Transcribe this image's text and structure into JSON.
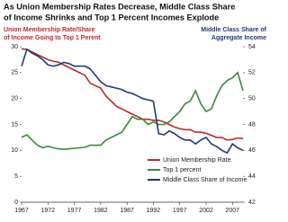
{
  "chart_data": {
    "type": "line",
    "title_lines": [
      "As Union Membership Rates Decrease, Middle Class Share",
      "of Income Shrinks and Top 1 Percent Incomes Explode"
    ],
    "y_label_lines": [
      "Union Membership Rate/Share",
      "of Income Going to Top 1 Perent"
    ],
    "y2_label_lines": [
      "Middle Class Share of",
      "Aggregate Income"
    ],
    "x": [
      1967,
      1968,
      1969,
      1970,
      1971,
      1972,
      1973,
      1974,
      1975,
      1976,
      1977,
      1978,
      1979,
      1980,
      1981,
      1982,
      1983,
      1984,
      1985,
      1986,
      1987,
      1988,
      1989,
      1990,
      1991,
      1992,
      1993,
      1994,
      1995,
      1996,
      1997,
      1998,
      1999,
      2000,
      2001,
      2002,
      2003,
      2004,
      2005,
      2006,
      2007,
      2008,
      2009
    ],
    "series": [
      {
        "name": "Union Membership Rate",
        "color": "#c0272d",
        "values": [
          29.6,
          29.5,
          29,
          28.5,
          28,
          27.5,
          27.2,
          27,
          26.5,
          26,
          25.5,
          25,
          24.5,
          23,
          22.5,
          22,
          20.5,
          19.5,
          18.5,
          18,
          17.5,
          17,
          16.5,
          16,
          16,
          15.8,
          15.8,
          15.5,
          15,
          14.5,
          14.2,
          14,
          14,
          13.5,
          13.5,
          13.3,
          12.9,
          12.5,
          12.5,
          12,
          12.1,
          12.4,
          12.3
        ]
      },
      {
        "name": "Top 1 percent",
        "color": "#3a8a3a",
        "values": [
          12.5,
          13,
          12,
          11,
          10.5,
          10.8,
          10.5,
          10.3,
          10.2,
          10.3,
          10.4,
          10.5,
          10.6,
          11,
          11,
          11,
          12,
          12.5,
          13,
          13.5,
          15,
          16.5,
          16,
          16,
          15,
          15.5,
          15,
          15,
          15.5,
          16.5,
          17.5,
          19,
          19.5,
          21.5,
          19,
          17.5,
          18,
          20.5,
          22.5,
          23.5,
          24,
          25,
          21.5
        ]
      },
      {
        "name": "Middle Class Share of Income",
        "color": "#1f3a7a",
        "axis": "y2",
        "values": [
          52.5,
          53.8,
          53.5,
          53.3,
          53,
          52.6,
          52.5,
          52.6,
          52.8,
          52.7,
          52.5,
          52.5,
          52.5,
          52.3,
          51.8,
          51.3,
          51,
          50.9,
          50.8,
          50.7,
          50.5,
          50.4,
          50.2,
          50,
          49.9,
          49.8,
          47.3,
          47.2,
          47.5,
          47.3,
          47,
          46.8,
          46.8,
          46.5,
          46.8,
          47,
          46.5,
          46.3,
          46,
          45.8,
          46.5,
          46.2,
          46
        ]
      }
    ],
    "xlim": [
      1967,
      2009
    ],
    "xticks": [
      1967,
      1972,
      1977,
      1982,
      1987,
      1992,
      1997,
      2002,
      2007
    ],
    "ylim": [
      0,
      30
    ],
    "yticks": [
      0,
      5,
      10,
      15,
      20,
      25,
      30
    ],
    "y2lim": [
      42,
      54
    ],
    "y2ticks": [
      42,
      44,
      46,
      48,
      50,
      52,
      54
    ]
  }
}
